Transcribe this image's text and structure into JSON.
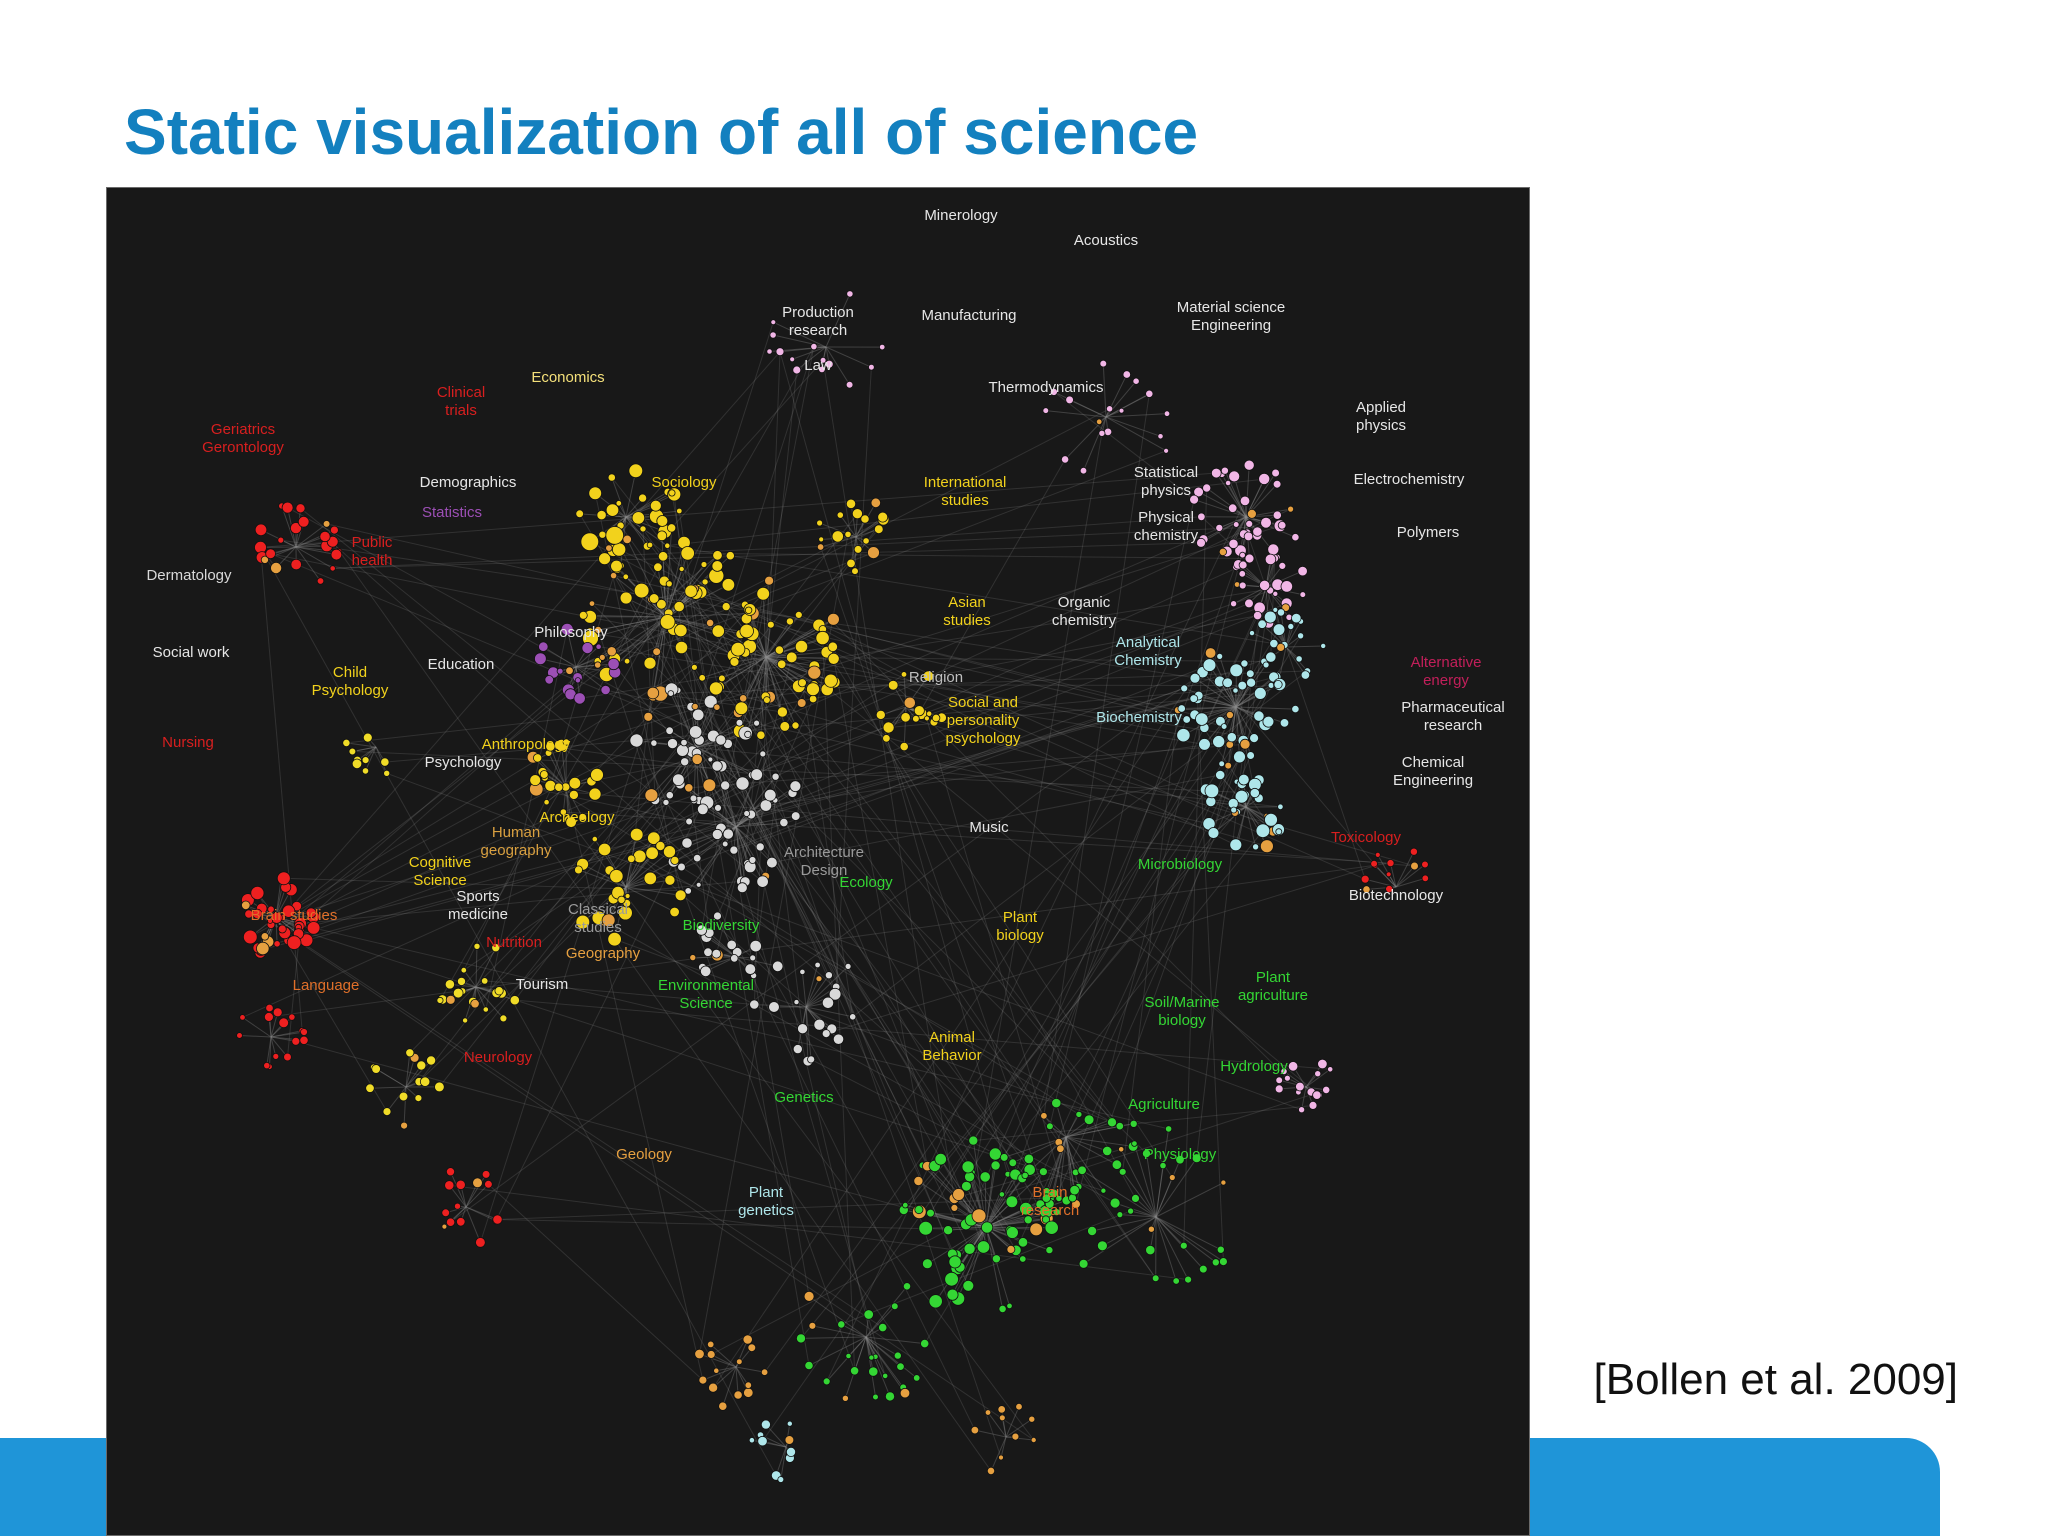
{
  "slide": {
    "title": "Static visualization of all of science",
    "citation": "[Bollen et al. 2009]"
  },
  "colors": {
    "title": "#1380bf",
    "footer_bar": "#1f95d8",
    "figure_background": "#181818",
    "edge": "#8c8c8c",
    "clusters": {
      "social_sciences": "#f2d21c",
      "humanities": "#d9d9d9",
      "physical_sciences": "#aee6ea",
      "materials": "#f1b6e6",
      "biology": "#34d634",
      "health": "#ee2020",
      "psychology": "#f0dc28",
      "statistics": "#9c4fb5",
      "earth": "#e6a040"
    }
  },
  "map": {
    "labels": [
      {
        "text": "Minerology",
        "color": "#e6e6e6"
      },
      {
        "text": "Acoustics",
        "color": "#e6e6e6"
      },
      {
        "text": "Manufacturing",
        "color": "#e6e6e6"
      },
      {
        "text": "Production research",
        "color": "#e6e6e6"
      },
      {
        "text": "Material science Engineering",
        "color": "#e6e6e6"
      },
      {
        "text": "Law",
        "color": "#e6e6e6"
      },
      {
        "text": "Economics",
        "color": "#f4e07a"
      },
      {
        "text": "Thermodynamics",
        "color": "#e6e6e6"
      },
      {
        "text": "Applied physics",
        "color": "#e6e6e6"
      },
      {
        "text": "Demographics",
        "color": "#e6e6e6"
      },
      {
        "text": "Sociology",
        "color": "#f2d21c"
      },
      {
        "text": "International studies",
        "color": "#f2d21c"
      },
      {
        "text": "Statistical physics",
        "color": "#e6e6e6"
      },
      {
        "text": "Electrochemistry",
        "color": "#e6e6e6"
      },
      {
        "text": "Statistics",
        "color": "#9c4fb5"
      },
      {
        "text": "Public health",
        "color": "#d81f1f"
      },
      {
        "text": "Physical chemistry",
        "color": "#e6e6e6"
      },
      {
        "text": "Polymers",
        "color": "#e6e6e6"
      },
      {
        "text": "Dermatology",
        "color": "#d9d9d9"
      },
      {
        "text": "Asian studies",
        "color": "#f2d21c"
      },
      {
        "text": "Organic chemistry",
        "color": "#e6e6e6"
      },
      {
        "text": "Philosophy",
        "color": "#e6e6e6"
      },
      {
        "text": "Analytical Chemistry",
        "color": "#aee6ea"
      },
      {
        "text": "Social work",
        "color": "#e6e6e6"
      },
      {
        "text": "Child Psychology",
        "color": "#f2d21c"
      },
      {
        "text": "Education",
        "color": "#e6e6e6"
      },
      {
        "text": "Alternative energy",
        "color": "#c21f5a"
      },
      {
        "text": "Religion",
        "color": "#bfbfbf"
      },
      {
        "text": "Social and personality psychology",
        "color": "#f2d21c"
      },
      {
        "text": "Pharmaceutical research",
        "color": "#e6e6e6"
      },
      {
        "text": "Biochemistry",
        "color": "#aee6ea"
      },
      {
        "text": "Nursing",
        "color": "#d81f1f"
      },
      {
        "text": "Anthropology",
        "color": "#f2d21c"
      },
      {
        "text": "Psychology",
        "color": "#e6e6e6"
      },
      {
        "text": "Chemical Engineering",
        "color": "#e6e6e6"
      },
      {
        "text": "Archeology",
        "color": "#f2d21c"
      },
      {
        "text": "Human geography",
        "color": "#d9a040"
      },
      {
        "text": "Music",
        "color": "#e6e6e6"
      },
      {
        "text": "Architecture Design",
        "color": "#9a9a9a"
      },
      {
        "text": "Toxicology",
        "color": "#d81f1f"
      },
      {
        "text": "Cognitive Science",
        "color": "#f2d21c"
      },
      {
        "text": "Microbiology",
        "color": "#34d634"
      },
      {
        "text": "Ecology",
        "color": "#34d634"
      },
      {
        "text": "Sports medicine",
        "color": "#e6e6e6"
      },
      {
        "text": "Biotechnology",
        "color": "#e6e6e6"
      },
      {
        "text": "Brain studies",
        "color": "#e0702a"
      },
      {
        "text": "Classical studies",
        "color": "#9a9a9a"
      },
      {
        "text": "Plant biology",
        "color": "#f2d21c"
      },
      {
        "text": "Biodiversity",
        "color": "#34d634"
      },
      {
        "text": "Nutrition",
        "color": "#d81f1f"
      },
      {
        "text": "Geography",
        "color": "#e6a040"
      },
      {
        "text": "Plant agriculture",
        "color": "#34d634"
      },
      {
        "text": "Language",
        "color": "#e0702a"
      },
      {
        "text": "Tourism",
        "color": "#e6e6e6"
      },
      {
        "text": "Environmental Science",
        "color": "#34d634"
      },
      {
        "text": "Soil/Marine biology",
        "color": "#34d634"
      },
      {
        "text": "Animal Behavior",
        "color": "#f2d21c"
      },
      {
        "text": "Hydrology",
        "color": "#34d634"
      },
      {
        "text": "Neurology",
        "color": "#d81f1f"
      },
      {
        "text": "Genetics",
        "color": "#34d634"
      },
      {
        "text": "Agriculture",
        "color": "#34d634"
      },
      {
        "text": "Geology",
        "color": "#e6a040"
      },
      {
        "text": "Physiology",
        "color": "#34d634"
      },
      {
        "text": "Plant genetics",
        "color": "#aee6ea"
      },
      {
        "text": "Brain research",
        "color": "#e0702a"
      },
      {
        "text": "Geriatrics Gerontology",
        "color": "#d81f1f"
      },
      {
        "text": "Clinical trials",
        "color": "#d81f1f"
      }
    ]
  }
}
